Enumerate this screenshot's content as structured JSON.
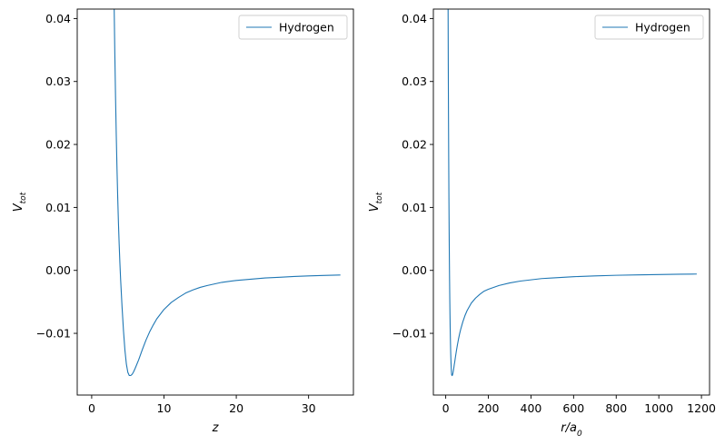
{
  "chart_data": [
    {
      "type": "line",
      "xlabel": "z",
      "ylabel": "V",
      "ylabel_sub": "tot",
      "xlim": [
        -2,
        36.2
      ],
      "ylim": [
        -0.0198,
        0.0415
      ],
      "xticks": [
        0,
        10,
        20,
        30
      ],
      "xtick_labels": [
        "0",
        "10",
        "20",
        "30"
      ],
      "yticks": [
        -0.01,
        0.0,
        0.01,
        0.02,
        0.03,
        0.04
      ],
      "ytick_labels": [
        "−0.01",
        "0.00",
        "0.01",
        "0.02",
        "0.03",
        "0.04"
      ],
      "legend": "upper right",
      "grid": false,
      "series": [
        {
          "name": "Hydrogen",
          "color": "#1f77b4",
          "x": [
            3.1,
            3.2,
            3.3,
            3.4,
            3.5,
            3.6,
            3.7,
            3.8,
            3.9,
            4.0,
            4.2,
            4.4,
            4.6,
            4.8,
            5.0,
            5.2,
            5.4,
            5.6,
            5.8,
            6.0,
            6.5,
            7.0,
            7.5,
            8.0,
            8.5,
            9.0,
            10.0,
            11.0,
            12.0,
            13.0,
            14.0,
            15.0,
            16.0,
            18.0,
            20.0,
            22.0,
            24.0,
            26.0,
            28.0,
            30.0,
            32.0,
            34.4
          ],
          "y": [
            0.0425,
            0.0345,
            0.0275,
            0.0215,
            0.0162,
            0.0116,
            0.0076,
            0.0042,
            0.0012,
            -0.0014,
            -0.0058,
            -0.0096,
            -0.0127,
            -0.0149,
            -0.0162,
            -0.0167,
            -0.0167,
            -0.0165,
            -0.0161,
            -0.0156,
            -0.0142,
            -0.0126,
            -0.0111,
            -0.0098,
            -0.0087,
            -0.0077,
            -0.0062,
            -0.0051,
            -0.0043,
            -0.0036,
            -0.0031,
            -0.0027,
            -0.0024,
            -0.0019,
            -0.0016,
            -0.0014,
            -0.0012,
            -0.0011,
            -0.00097,
            -0.00088,
            -0.00081,
            -0.00074
          ]
        }
      ]
    },
    {
      "type": "line",
      "xlabel": "r/a",
      "xlabel_sub": "0",
      "ylabel": "V",
      "ylabel_sub": "tot",
      "xlim": [
        -58,
        1238
      ],
      "ylim": [
        -0.0198,
        0.0415
      ],
      "xticks": [
        0,
        200,
        400,
        600,
        800,
        1000,
        1200
      ],
      "xtick_labels": [
        "0",
        "200",
        "400",
        "600",
        "800",
        "1000",
        "1200"
      ],
      "yticks": [
        -0.01,
        0.0,
        0.01,
        0.02,
        0.03,
        0.04
      ],
      "ytick_labels": [
        "−0.01",
        "0.00",
        "0.01",
        "0.02",
        "0.03",
        "0.04"
      ],
      "legend": "upper right",
      "grid": false,
      "series": [
        {
          "name": "Hydrogen",
          "color": "#1f77b4",
          "x": [
            11,
            12,
            13,
            14,
            15,
            16,
            17,
            18,
            19,
            20,
            21,
            22,
            23,
            24,
            25,
            26,
            27,
            28,
            30,
            32,
            34,
            36,
            38,
            40,
            42,
            45,
            50,
            55,
            60,
            65,
            70,
            80,
            90,
            100,
            120,
            140,
            160,
            180,
            200,
            250,
            300,
            350,
            400,
            450,
            500,
            600,
            700,
            800,
            900,
            1000,
            1100,
            1178
          ],
          "y": [
            0.0425,
            0.0325,
            0.0245,
            0.0175,
            0.0115,
            0.0065,
            0.0022,
            -0.0014,
            -0.0045,
            -0.0071,
            -0.0093,
            -0.0111,
            -0.0126,
            -0.0138,
            -0.0148,
            -0.0156,
            -0.0162,
            -0.0166,
            -0.0167,
            -0.0166,
            -0.0163,
            -0.0159,
            -0.0155,
            -0.015,
            -0.0146,
            -0.0139,
            -0.0128,
            -0.0118,
            -0.0109,
            -0.0101,
            -0.0094,
            -0.0082,
            -0.0072,
            -0.0064,
            -0.0052,
            -0.0044,
            -0.0038,
            -0.0033,
            -0.003,
            -0.0024,
            -0.002,
            -0.0017,
            -0.0015,
            -0.0013,
            -0.0012,
            -0.001,
            -0.00088,
            -0.00078,
            -0.00072,
            -0.00066,
            -0.00061,
            -0.00058
          ]
        }
      ]
    }
  ]
}
